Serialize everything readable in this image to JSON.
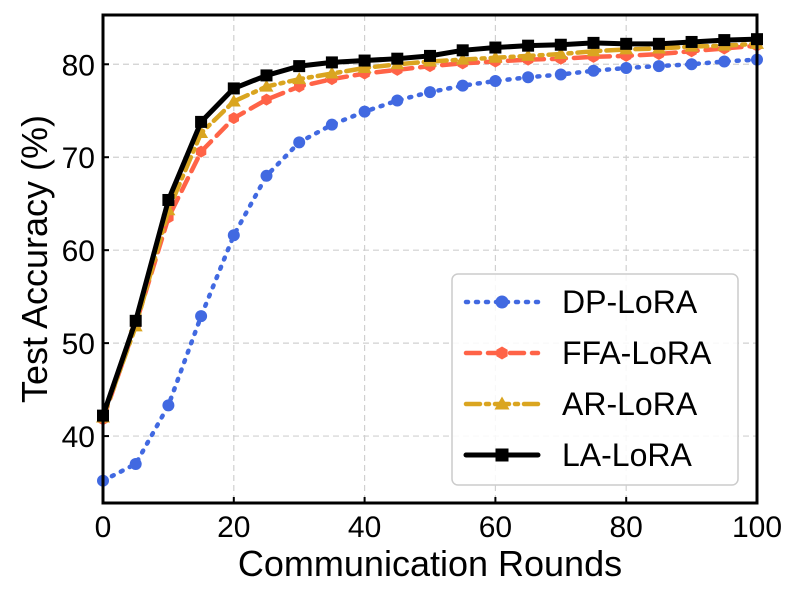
{
  "chart_data": {
    "type": "line",
    "title": "",
    "xlabel": "Communication Rounds",
    "ylabel": "Test Accuracy (%)",
    "xlim": [
      0,
      100
    ],
    "ylim": [
      32.8,
      85.3
    ],
    "xticks": [
      0,
      20,
      40,
      60,
      80,
      100
    ],
    "yticks": [
      40,
      50,
      60,
      70,
      80
    ],
    "grid": true,
    "legend_position": "lower-right",
    "x": [
      0,
      5,
      10,
      15,
      20,
      25,
      30,
      35,
      40,
      45,
      50,
      55,
      60,
      65,
      70,
      75,
      80,
      85,
      90,
      95,
      100
    ],
    "series": [
      {
        "name": "DP-LoRA",
        "color": "#4169E1",
        "linestyle": "dotted",
        "marker": "circle",
        "values": [
          35.2,
          37.0,
          43.3,
          52.9,
          61.6,
          68.0,
          71.6,
          73.5,
          74.9,
          76.1,
          77.0,
          77.7,
          78.2,
          78.6,
          78.9,
          79.3,
          79.6,
          79.8,
          80.0,
          80.3,
          80.5
        ]
      },
      {
        "name": "FFA-LoRA",
        "color": "#FF6347",
        "linestyle": "dashed",
        "marker": "hexagon",
        "values": [
          41.8,
          52.0,
          63.5,
          70.6,
          74.2,
          76.2,
          77.6,
          78.4,
          79.0,
          79.4,
          79.8,
          80.1,
          80.3,
          80.5,
          80.6,
          80.8,
          80.9,
          81.1,
          81.4,
          81.7,
          82.0
        ]
      },
      {
        "name": "AR-LoRA",
        "color": "#DAA520",
        "linestyle": "dashdot",
        "marker": "triangle",
        "values": [
          42.0,
          51.8,
          64.3,
          72.6,
          76.0,
          77.6,
          78.4,
          79.0,
          79.6,
          80.0,
          80.3,
          80.5,
          80.7,
          80.9,
          81.1,
          81.4,
          81.6,
          81.7,
          81.9,
          82.0,
          82.2
        ]
      },
      {
        "name": "LA-LoRA",
        "color": "#000000",
        "linestyle": "solid",
        "marker": "square",
        "values": [
          42.2,
          52.4,
          65.4,
          73.8,
          77.4,
          78.8,
          79.8,
          80.2,
          80.4,
          80.6,
          80.9,
          81.5,
          81.8,
          82.0,
          82.1,
          82.3,
          82.2,
          82.2,
          82.4,
          82.6,
          82.7
        ]
      }
    ]
  }
}
